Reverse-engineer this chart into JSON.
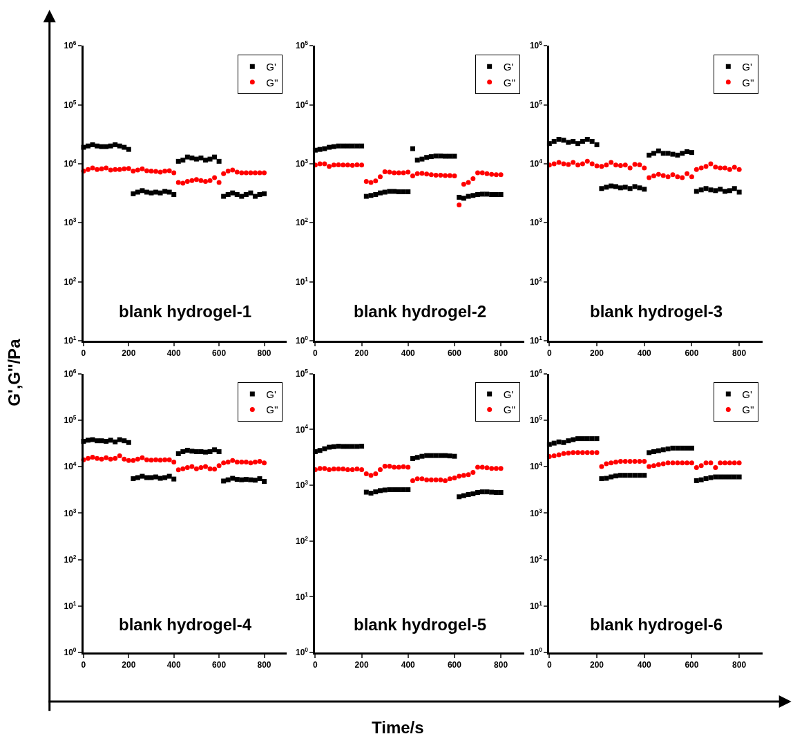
{
  "chart_data": [
    {
      "type": "scatter",
      "title": "blank hydrogel-1",
      "ylabel": "G',G''/Pa",
      "log": "y",
      "legend": "top right",
      "xlim": [
        0,
        900
      ],
      "xticks": [
        0,
        200,
        400,
        600,
        800
      ],
      "ylim": [
        10,
        1000000
      ],
      "yticks": [
        {
          "value": 10,
          "label": "10$^{1}$"
        },
        {
          "value": 100,
          "label": "10$^{2}$"
        },
        {
          "value": 1000,
          "label": "10$^{3}$"
        },
        {
          "value": 10000,
          "label": "10$^{4}$"
        },
        {
          "value": 100000,
          "label": "10$^{5}$"
        },
        {
          "value": 1000000,
          "label": "10$^{6}$"
        }
      ],
      "x": [
        0,
        20,
        40,
        60,
        80,
        100,
        120,
        140,
        160,
        180,
        200,
        220,
        240,
        260,
        280,
        300,
        320,
        340,
        360,
        380,
        400,
        420,
        440,
        460,
        480,
        500,
        520,
        540,
        560,
        580,
        600,
        620,
        640,
        660,
        680,
        700,
        720,
        740,
        760,
        780,
        800
      ],
      "series": [
        {
          "name": "G'",
          "color": "#000000",
          "marker": "square",
          "values": [
            19000,
            20000,
            21000,
            20000,
            19500,
            19500,
            20000,
            21000,
            20000,
            19000,
            17500,
            3100,
            3300,
            3500,
            3300,
            3200,
            3300,
            3200,
            3400,
            3300,
            3000,
            11000,
            11500,
            13000,
            12500,
            12000,
            12500,
            11500,
            12000,
            13000,
            11000,
            2800,
            3000,
            3200,
            3000,
            2800,
            3000,
            3200,
            2800,
            3000,
            3100
          ]
        },
        {
          "name": "G''",
          "color": "#ff0000",
          "marker": "circle",
          "values": [
            7500,
            8000,
            8500,
            8000,
            8200,
            8500,
            7800,
            8000,
            8000,
            8200,
            8300,
            7500,
            7800,
            8200,
            7600,
            7500,
            7400,
            7200,
            7500,
            7600,
            7000,
            4800,
            4700,
            5000,
            5200,
            5400,
            5200,
            5000,
            5200,
            5800,
            4800,
            6800,
            7500,
            7800,
            7200,
            7000,
            7000,
            7000,
            7000,
            7000,
            7000
          ]
        }
      ]
    },
    {
      "type": "scatter",
      "title": "blank hydrogel-2",
      "log": "y",
      "legend": "top right",
      "xlim": [
        0,
        900
      ],
      "xticks": [
        0,
        200,
        400,
        600,
        800
      ],
      "ylim": [
        1,
        100000
      ],
      "yticks": [
        {
          "value": 1,
          "label": "10$^{0}$"
        },
        {
          "value": 10,
          "label": "10$^{1}$"
        },
        {
          "value": 100,
          "label": "10$^{2}$"
        },
        {
          "value": 1000,
          "label": "10$^{3}$"
        },
        {
          "value": 10000,
          "label": "10$^{4}$"
        },
        {
          "value": 100000,
          "label": "10$^{5}$"
        }
      ],
      "x": [
        0,
        20,
        40,
        60,
        80,
        100,
        120,
        140,
        160,
        180,
        200,
        220,
        240,
        260,
        280,
        300,
        320,
        340,
        360,
        380,
        400,
        420,
        440,
        460,
        480,
        500,
        520,
        540,
        560,
        580,
        600,
        620,
        640,
        660,
        680,
        700,
        720,
        740,
        760,
        780,
        800
      ],
      "series": [
        {
          "name": "G'",
          "color": "#000000",
          "marker": "square",
          "values": [
            1700,
            1750,
            1800,
            1900,
            1950,
            2000,
            2000,
            2000,
            2000,
            2000,
            2000,
            280,
            290,
            300,
            320,
            330,
            340,
            340,
            335,
            335,
            335,
            1800,
            1150,
            1200,
            1280,
            1320,
            1350,
            1350,
            1340,
            1340,
            1340,
            270,
            260,
            280,
            290,
            300,
            305,
            305,
            300,
            300,
            300
          ]
        },
        {
          "name": "G''",
          "color": "#ff0000",
          "marker": "circle",
          "values": [
            950,
            1000,
            1000,
            900,
            950,
            960,
            950,
            950,
            940,
            960,
            950,
            500,
            480,
            510,
            600,
            730,
            720,
            700,
            700,
            700,
            720,
            620,
            680,
            690,
            670,
            650,
            640,
            640,
            630,
            630,
            620,
            200,
            450,
            480,
            560,
            700,
            700,
            680,
            660,
            650,
            650
          ]
        }
      ]
    },
    {
      "type": "scatter",
      "title": "blank hydrogel-3",
      "log": "y",
      "legend": "top right",
      "xlim": [
        0,
        900
      ],
      "xticks": [
        0,
        200,
        400,
        600,
        800
      ],
      "ylim": [
        10,
        1000000
      ],
      "yticks": [
        {
          "value": 10,
          "label": "10$^{1}$"
        },
        {
          "value": 100,
          "label": "10$^{2}$"
        },
        {
          "value": 1000,
          "label": "10$^{3}$"
        },
        {
          "value": 10000,
          "label": "10$^{4}$"
        },
        {
          "value": 100000,
          "label": "10$^{5}$"
        },
        {
          "value": 1000000,
          "label": "10$^{6}$"
        }
      ],
      "x": [
        0,
        20,
        40,
        60,
        80,
        100,
        120,
        140,
        160,
        180,
        200,
        220,
        240,
        260,
        280,
        300,
        320,
        340,
        360,
        380,
        400,
        420,
        440,
        460,
        480,
        500,
        520,
        540,
        560,
        580,
        600,
        620,
        640,
        660,
        680,
        700,
        720,
        740,
        760,
        780,
        800
      ],
      "series": [
        {
          "name": "G'",
          "color": "#000000",
          "marker": "square",
          "values": [
            22000,
            24000,
            26000,
            25000,
            23000,
            24000,
            22000,
            24000,
            26000,
            24000,
            21000,
            3800,
            4000,
            4200,
            4100,
            3900,
            4000,
            3800,
            4100,
            3900,
            3700,
            14000,
            15000,
            16500,
            15000,
            15000,
            14500,
            14000,
            15000,
            16000,
            15500,
            3400,
            3600,
            3800,
            3600,
            3500,
            3700,
            3400,
            3500,
            3800,
            3300
          ]
        },
        {
          "name": "G''",
          "color": "#ff0000",
          "marker": "circle",
          "values": [
            9500,
            10000,
            10500,
            10000,
            9700,
            10500,
            9500,
            10000,
            11000,
            10000,
            9200,
            9000,
            9500,
            10500,
            9500,
            9300,
            9500,
            8500,
            9800,
            9600,
            8500,
            5800,
            6200,
            6600,
            6300,
            6000,
            6500,
            6000,
            5800,
            6800,
            6000,
            8000,
            8500,
            9000,
            10000,
            8800,
            8500,
            8500,
            8000,
            8700,
            8000
          ]
        }
      ]
    },
    {
      "type": "scatter",
      "title": "blank hydrogel-4",
      "log": "y",
      "legend": "top right",
      "xlim": [
        0,
        900
      ],
      "xticks": [
        0,
        200,
        400,
        600,
        800
      ],
      "ylim": [
        1,
        1000000
      ],
      "yticks": [
        {
          "value": 1,
          "label": "10$^{0}$"
        },
        {
          "value": 10,
          "label": "10$^{1}$"
        },
        {
          "value": 100,
          "label": "10$^{2}$"
        },
        {
          "value": 1000,
          "label": "10$^{3}$"
        },
        {
          "value": 10000,
          "label": "10$^{4}$"
        },
        {
          "value": 100000,
          "label": "10$^{5}$"
        },
        {
          "value": 1000000,
          "label": "10$^{6}$"
        }
      ],
      "x": [
        0,
        20,
        40,
        60,
        80,
        100,
        120,
        140,
        160,
        180,
        200,
        220,
        240,
        260,
        280,
        300,
        320,
        340,
        360,
        380,
        400,
        420,
        440,
        460,
        480,
        500,
        520,
        540,
        560,
        580,
        600,
        620,
        640,
        660,
        680,
        700,
        720,
        740,
        760,
        780,
        800
      ],
      "series": [
        {
          "name": "G'",
          "color": "#000000",
          "marker": "square",
          "values": [
            35000,
            37000,
            38000,
            36000,
            36000,
            35000,
            37000,
            34000,
            38000,
            36000,
            33000,
            5500,
            5800,
            6200,
            5800,
            5800,
            6000,
            5600,
            5800,
            6200,
            5400,
            19000,
            21000,
            22500,
            21500,
            21000,
            21000,
            20500,
            21000,
            23000,
            21000,
            4900,
            5200,
            5600,
            5300,
            5200,
            5300,
            5200,
            5100,
            5500,
            4800
          ]
        },
        {
          "name": "G''",
          "color": "#ff0000",
          "marker": "circle",
          "values": [
            14000,
            15000,
            16000,
            15000,
            14500,
            15500,
            14500,
            15000,
            17000,
            14500,
            13500,
            13500,
            14500,
            15500,
            14000,
            13800,
            14000,
            13800,
            14000,
            14000,
            12500,
            8500,
            9000,
            9500,
            10000,
            9000,
            9500,
            10000,
            9000,
            8800,
            10500,
            12000,
            12500,
            13500,
            12500,
            12500,
            12500,
            12000,
            12500,
            13000,
            12000
          ]
        }
      ]
    },
    {
      "type": "scatter",
      "title": "blank hydrogel-5",
      "xlabel": "Time/s",
      "log": "y",
      "legend": "top right",
      "xlim": [
        0,
        900
      ],
      "xticks": [
        0,
        200,
        400,
        600,
        800
      ],
      "ylim": [
        1,
        100000
      ],
      "yticks": [
        {
          "value": 1,
          "label": "10$^{0}$"
        },
        {
          "value": 10,
          "label": "10$^{1}$"
        },
        {
          "value": 100,
          "label": "10$^{2}$"
        },
        {
          "value": 1000,
          "label": "10$^{3}$"
        },
        {
          "value": 10000,
          "label": "10$^{4}$"
        },
        {
          "value": 100000,
          "label": "10$^{5}$"
        }
      ],
      "x": [
        0,
        20,
        40,
        60,
        80,
        100,
        120,
        140,
        160,
        180,
        200,
        220,
        240,
        260,
        280,
        300,
        320,
        340,
        360,
        380,
        400,
        420,
        440,
        460,
        480,
        500,
        520,
        540,
        560,
        580,
        600,
        620,
        640,
        660,
        680,
        700,
        720,
        740,
        760,
        780,
        800
      ],
      "series": [
        {
          "name": "G'",
          "color": "#000000",
          "marker": "square",
          "values": [
            4000,
            4200,
            4500,
            4800,
            4900,
            5000,
            4950,
            4950,
            4950,
            4950,
            5000,
            750,
            720,
            760,
            800,
            820,
            830,
            830,
            830,
            830,
            830,
            3000,
            3150,
            3300,
            3400,
            3400,
            3400,
            3400,
            3400,
            3350,
            3300,
            620,
            650,
            680,
            700,
            740,
            760,
            760,
            750,
            740,
            740
          ]
        },
        {
          "name": "G''",
          "color": "#ff0000",
          "marker": "circle",
          "values": [
            1900,
            2000,
            2000,
            1900,
            1950,
            1950,
            1950,
            1900,
            1900,
            1950,
            1900,
            1600,
            1500,
            1600,
            1900,
            2200,
            2200,
            2100,
            2100,
            2150,
            2100,
            1200,
            1300,
            1300,
            1250,
            1250,
            1250,
            1250,
            1200,
            1300,
            1350,
            1450,
            1500,
            1550,
            1700,
            2100,
            2100,
            2050,
            2000,
            2000,
            2000
          ]
        }
      ]
    },
    {
      "type": "scatter",
      "title": "blank hydrogel-6",
      "log": "y",
      "legend": "top right",
      "xlim": [
        0,
        900
      ],
      "xticks": [
        0,
        200,
        400,
        600,
        800
      ],
      "ylim": [
        1,
        1000000
      ],
      "yticks": [
        {
          "value": 1,
          "label": "10$^{0}$"
        },
        {
          "value": 10,
          "label": "10$^{1}$"
        },
        {
          "value": 100,
          "label": "10$^{2}$"
        },
        {
          "value": 1000,
          "label": "10$^{3}$"
        },
        {
          "value": 10000,
          "label": "10$^{4}$"
        },
        {
          "value": 100000,
          "label": "10$^{5}$"
        },
        {
          "value": 1000000,
          "label": "10$^{6}$"
        }
      ],
      "x": [
        0,
        20,
        40,
        60,
        80,
        100,
        120,
        140,
        160,
        180,
        200,
        220,
        240,
        260,
        280,
        300,
        320,
        340,
        360,
        380,
        400,
        420,
        440,
        460,
        480,
        500,
        520,
        540,
        560,
        580,
        600,
        620,
        640,
        660,
        680,
        700,
        720,
        740,
        760,
        780,
        800
      ],
      "series": [
        {
          "name": "G'",
          "color": "#000000",
          "marker": "square",
          "values": [
            30000,
            32000,
            34000,
            33000,
            36000,
            38000,
            40000,
            40000,
            40000,
            40000,
            40000,
            5500,
            5600,
            6000,
            6300,
            6500,
            6500,
            6500,
            6500,
            6500,
            6500,
            20000,
            21000,
            22000,
            23000,
            24000,
            25000,
            25000,
            25000,
            25000,
            25000,
            5000,
            5200,
            5500,
            5800,
            6000,
            6000,
            6000,
            6000,
            6000,
            6000
          ]
        },
        {
          "name": "G''",
          "color": "#ff0000",
          "marker": "circle",
          "values": [
            16500,
            17000,
            18000,
            19000,
            19500,
            20000,
            20000,
            20000,
            20000,
            20000,
            20000,
            10000,
            11500,
            12000,
            12500,
            13000,
            13000,
            13000,
            13000,
            13000,
            13000,
            10000,
            10500,
            11000,
            11500,
            12000,
            12000,
            12000,
            12000,
            12000,
            12000,
            9500,
            10500,
            12000,
            12000,
            9500,
            12000,
            12000,
            12000,
            12000,
            12000
          ]
        }
      ]
    }
  ]
}
